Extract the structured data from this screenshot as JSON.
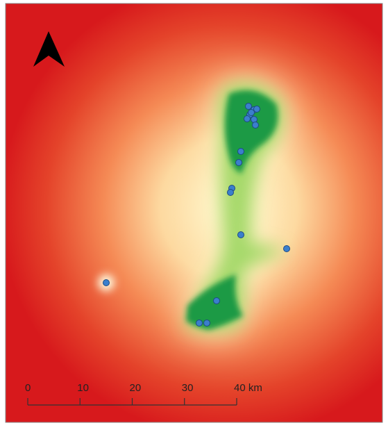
{
  "scale_bar": {
    "labels": [
      "0",
      "10",
      "20",
      "30",
      "40 km"
    ]
  }
}
